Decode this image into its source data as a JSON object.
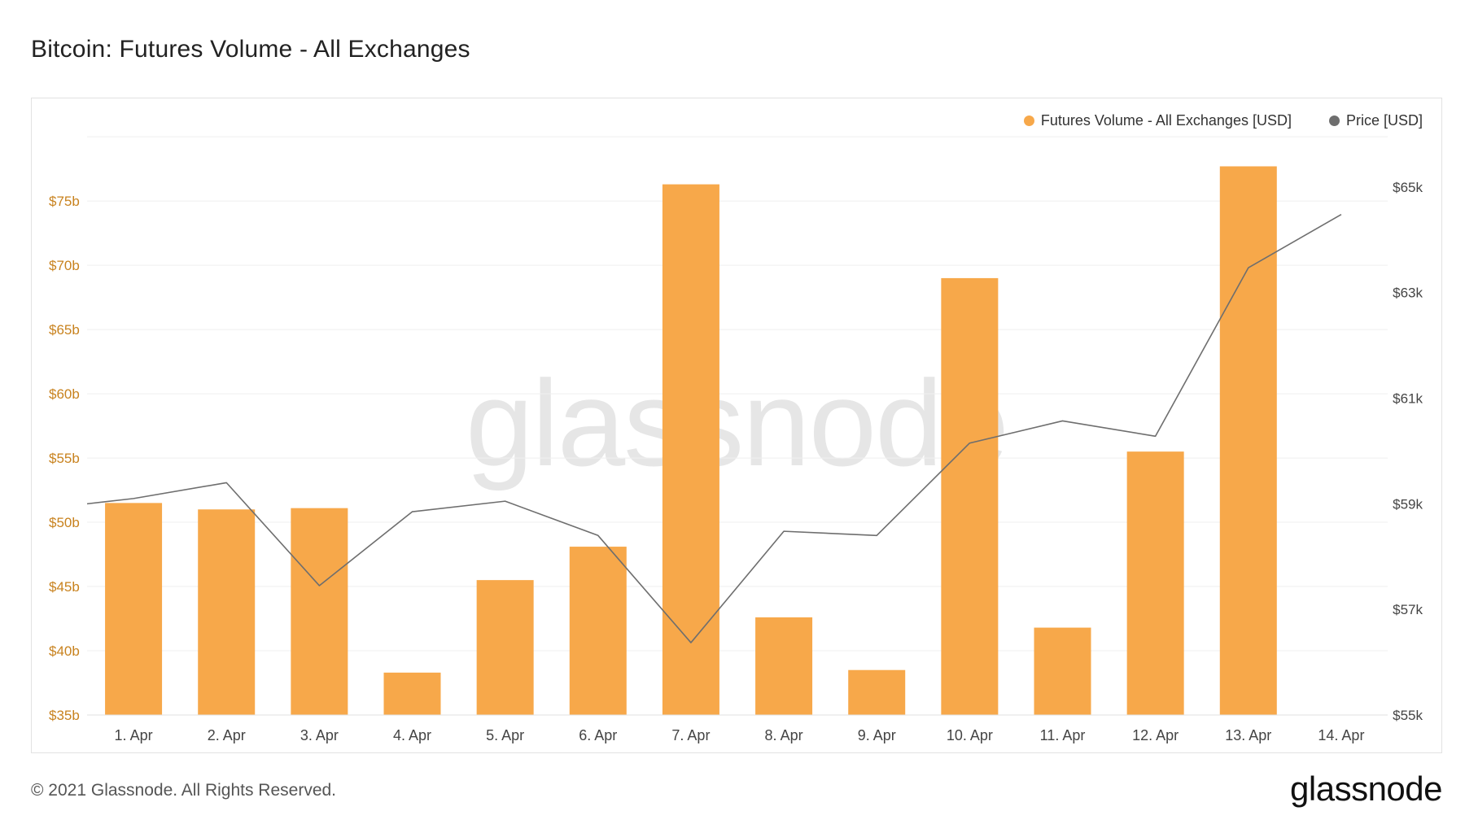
{
  "title": "Bitcoin: Futures Volume - All Exchanges",
  "footer": {
    "copyright": "© 2021 Glassnode. All Rights Reserved.",
    "logo": "glassnode"
  },
  "watermark": "glassnode",
  "colors": {
    "bar": "#f7a84a",
    "price": "#6e6e6e",
    "left_axis_text": "#c8821e",
    "right_axis_text": "#444444",
    "grid": "#efefef"
  },
  "chart_data": {
    "type": "bar",
    "categories": [
      "1. Apr",
      "2. Apr",
      "3. Apr",
      "4. Apr",
      "5. Apr",
      "6. Apr",
      "7. Apr",
      "8. Apr",
      "9. Apr",
      "10. Apr",
      "11. Apr",
      "12. Apr",
      "13. Apr",
      "14. Apr"
    ],
    "series": [
      {
        "name": "Futures Volume - All Exchanges [USD]",
        "axis": "left",
        "type": "bar",
        "values": [
          51.5,
          51.0,
          51.1,
          38.3,
          45.5,
          48.1,
          76.3,
          42.6,
          38.5,
          69.0,
          41.8,
          55.5,
          77.7,
          null
        ]
      },
      {
        "name": "Price [USD]",
        "axis": "right",
        "type": "line",
        "values": [
          59100,
          59400,
          57450,
          58850,
          59050,
          58400,
          56370,
          58480,
          58400,
          60150,
          60570,
          60280,
          63470,
          64480
        ],
        "start_value": 59000
      }
    ],
    "y_left": {
      "ticks": [
        35,
        40,
        45,
        50,
        55,
        60,
        65,
        70,
        75
      ],
      "tick_labels": [
        "$35b",
        "$40b",
        "$45b",
        "$50b",
        "$55b",
        "$60b",
        "$65b",
        "$70b",
        "$75b"
      ],
      "range": [
        35,
        80.2
      ]
    },
    "y_right": {
      "ticks": [
        55000,
        57000,
        59000,
        61000,
        63000,
        65000
      ],
      "tick_labels": [
        "$55k",
        "$57k",
        "$59k",
        "$61k",
        "$63k",
        "$65k"
      ],
      "range": [
        55000,
        66000
      ]
    },
    "grid": true,
    "legend_position": "top-right"
  }
}
